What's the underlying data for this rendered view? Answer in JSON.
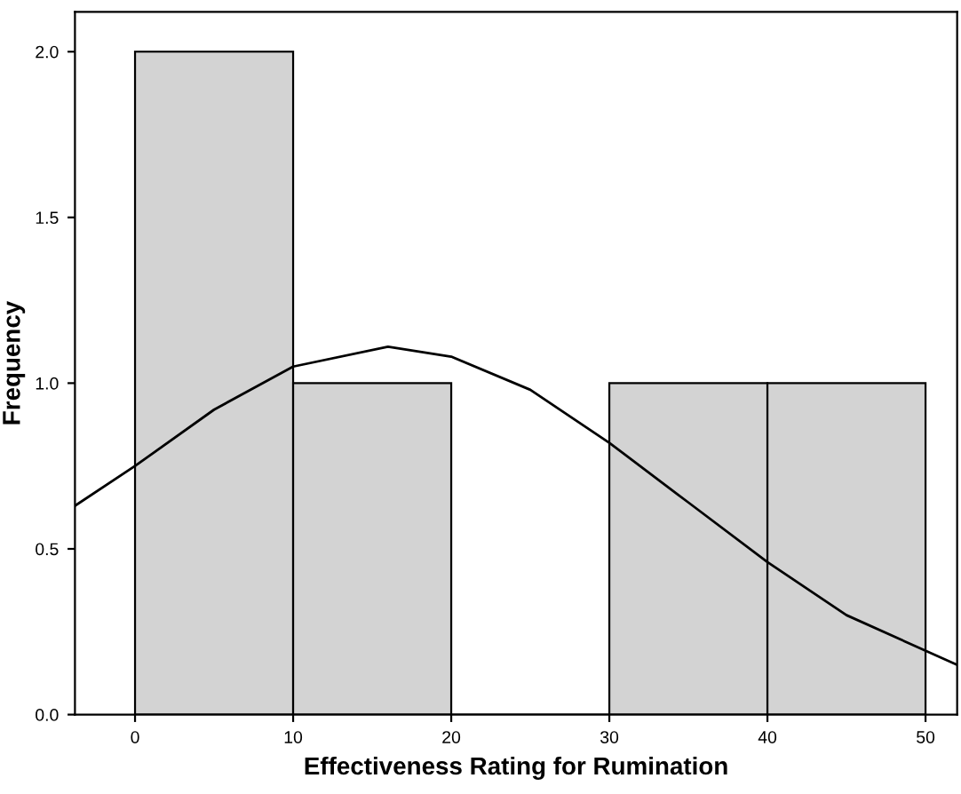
{
  "chart_data": {
    "type": "histogram",
    "xlabel": "Effectiveness Rating for Rumination",
    "ylabel": "Frequency",
    "xlim": [
      -3.8,
      52
    ],
    "ylim": [
      0,
      2.12
    ],
    "xticks": [
      0,
      10,
      20,
      30,
      40,
      50
    ],
    "yticks": [
      {
        "value": 0,
        "label": "0.0"
      },
      {
        "value": 0.5,
        "label": "0.5"
      },
      {
        "value": 1,
        "label": "1.0"
      },
      {
        "value": 1.5,
        "label": "1.5"
      },
      {
        "value": 2,
        "label": "2.0"
      }
    ],
    "grid": false,
    "legend": false,
    "series": [
      {
        "bins": [
          0,
          10,
          20,
          30,
          40,
          50
        ],
        "values": [
          2,
          1,
          0,
          1,
          1
        ],
        "color": "#d3d3d3"
      },
      {
        "type": "line",
        "color": "#000000",
        "x": [
          -3.8,
          0,
          5,
          10,
          16,
          20,
          25,
          30,
          35,
          40,
          45,
          52
        ],
        "values": [
          0.63,
          0.75,
          0.92,
          1.05,
          1.11,
          1.08,
          0.98,
          0.82,
          0.64,
          0.46,
          0.3,
          0.15
        ]
      }
    ]
  }
}
